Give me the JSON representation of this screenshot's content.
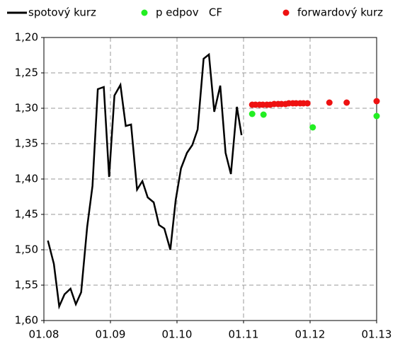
{
  "chart_data": {
    "type": "line-scatter",
    "xlim": [
      2008,
      2013
    ],
    "xticks": [
      {
        "value": 2008,
        "label": "01.08"
      },
      {
        "value": 2009,
        "label": "01.09"
      },
      {
        "value": 2010,
        "label": "01.10"
      },
      {
        "value": 2011,
        "label": "01.11"
      },
      {
        "value": 2012,
        "label": "01.12"
      },
      {
        "value": 2013,
        "label": "01.13"
      }
    ],
    "ylim": [
      1.2,
      1.6
    ],
    "y_inverted": true,
    "yticks": [
      {
        "value": 1.2,
        "label": "1,20"
      },
      {
        "value": 1.25,
        "label": "1,25"
      },
      {
        "value": 1.3,
        "label": "1,30"
      },
      {
        "value": 1.35,
        "label": "1,35"
      },
      {
        "value": 1.4,
        "label": "1,40"
      },
      {
        "value": 1.45,
        "label": "1,45"
      },
      {
        "value": 1.5,
        "label": "1,50"
      },
      {
        "value": 1.55,
        "label": "1,55"
      },
      {
        "value": 1.6,
        "label": "1,60"
      }
    ],
    "grid": true,
    "series": [
      {
        "name": "spotový kurz",
        "kind": "line",
        "color": "#000000",
        "x": [
          2008.06,
          2008.15,
          2008.23,
          2008.31,
          2008.4,
          2008.48,
          2008.56,
          2008.65,
          2008.73,
          2008.81,
          2008.9,
          2008.98,
          2009.06,
          2009.15,
          2009.23,
          2009.31,
          2009.4,
          2009.48,
          2009.56,
          2009.65,
          2009.73,
          2009.81,
          2009.9,
          2009.98,
          2010.06,
          2010.15,
          2010.23,
          2010.31,
          2010.4,
          2010.48,
          2010.56,
          2010.65,
          2010.73,
          2010.81,
          2010.9,
          2010.97
        ],
        "values": [
          1.487,
          1.52,
          1.58,
          1.563,
          1.555,
          1.577,
          1.56,
          1.468,
          1.41,
          1.273,
          1.27,
          1.397,
          1.282,
          1.267,
          1.325,
          1.323,
          1.415,
          1.403,
          1.426,
          1.433,
          1.465,
          1.47,
          1.5,
          1.43,
          1.385,
          1.363,
          1.352,
          1.33,
          1.23,
          1.224,
          1.305,
          1.268,
          1.363,
          1.393,
          1.298,
          1.338
        ]
      },
      {
        "name": "p edpov   CF",
        "kind": "scatter",
        "color": "#22ee22",
        "x": [
          2011.13,
          2011.3,
          2012.04,
          2013.0
        ],
        "values": [
          1.308,
          1.309,
          1.327,
          1.311
        ]
      },
      {
        "name": "forwardový kurz",
        "kind": "scatter",
        "color": "#ee1111",
        "x": [
          2011.13,
          2011.18,
          2011.24,
          2011.29,
          2011.35,
          2011.4,
          2011.46,
          2011.52,
          2011.57,
          2011.63,
          2011.68,
          2011.74,
          2011.79,
          2011.85,
          2011.9,
          2011.96,
          2012.29,
          2012.55,
          2013.0
        ],
        "values": [
          1.295,
          1.295,
          1.295,
          1.295,
          1.295,
          1.295,
          1.294,
          1.294,
          1.294,
          1.294,
          1.293,
          1.293,
          1.293,
          1.293,
          1.293,
          1.293,
          1.292,
          1.292,
          1.29
        ]
      }
    ]
  }
}
